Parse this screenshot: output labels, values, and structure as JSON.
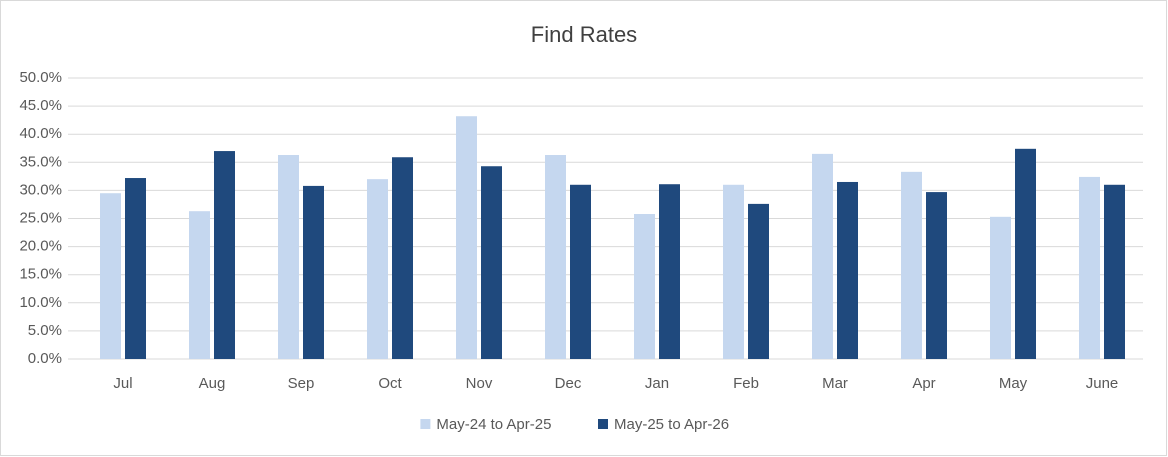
{
  "chart_data": {
    "type": "bar",
    "title": "Find Rates",
    "categories": [
      "Jul",
      "Aug",
      "Sep",
      "Oct",
      "Nov",
      "Dec",
      "Jan",
      "Feb",
      "Mar",
      "Apr",
      "May",
      "June"
    ],
    "series": [
      {
        "name": "May-24 to Apr-25",
        "color": "#c5d7ef",
        "values": [
          29.5,
          26.3,
          36.3,
          32.0,
          43.2,
          36.3,
          25.8,
          31.0,
          36.5,
          33.3,
          25.3,
          32.4
        ]
      },
      {
        "name": "May-25 to Apr-26",
        "color": "#1f497d",
        "values": [
          32.2,
          37.0,
          30.8,
          35.9,
          34.3,
          31.0,
          31.1,
          27.6,
          31.5,
          29.7,
          37.4,
          31.0
        ]
      }
    ],
    "ylim": [
      0,
      50
    ],
    "yticks": [
      {
        "value": 0,
        "label": "0.0%"
      },
      {
        "value": 5,
        "label": "5.0%"
      },
      {
        "value": 10,
        "label": "10.0%"
      },
      {
        "value": 15,
        "label": "15.0%"
      },
      {
        "value": 20,
        "label": "20.0%"
      },
      {
        "value": 25,
        "label": "25.0%"
      },
      {
        "value": 30,
        "label": "30.0%"
      },
      {
        "value": 35,
        "label": "35.0%"
      },
      {
        "value": 40,
        "label": "40.0%"
      },
      {
        "value": 45,
        "label": "45.0%"
      },
      {
        "value": 50,
        "label": "50.0%"
      }
    ],
    "grid": true,
    "legend": "bottom"
  }
}
